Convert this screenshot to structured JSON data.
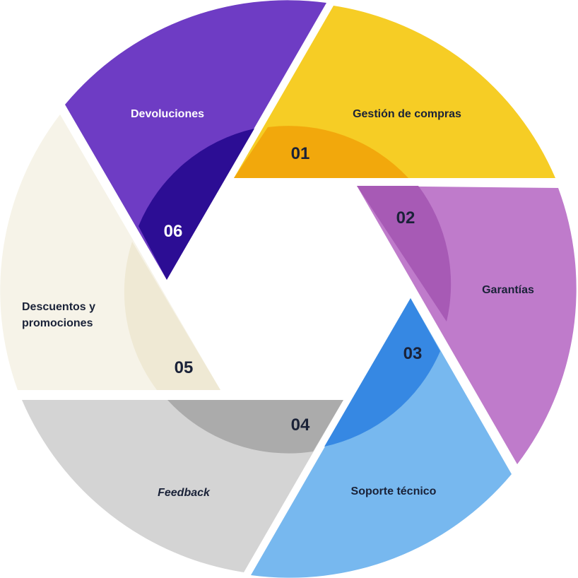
{
  "segments": [
    {
      "number": "01",
      "label": "Gestión de compras",
      "outer_color": "#F6CD25",
      "inner_color": "#F2A80C",
      "text_color": "#1A2238",
      "number_color": "#1A2238"
    },
    {
      "number": "02",
      "label": "Garantías",
      "outer_color": "#BF7BCB",
      "inner_color": "#A75AB5",
      "text_color": "#1A2238",
      "number_color": "#1A2238"
    },
    {
      "number": "03",
      "label": "Soporte técnico",
      "outer_color": "#77B8EF",
      "inner_color": "#3688E3",
      "text_color": "#1A2238",
      "number_color": "#1A2238"
    },
    {
      "number": "04",
      "label": "Feedback",
      "outer_color": "#D4D4D4",
      "inner_color": "#ABABAB",
      "text_color": "#1A2238",
      "number_color": "#1A2238",
      "italic": true
    },
    {
      "number": "05",
      "label": "Descuentos y promociones",
      "outer_color": "#F6F3E8",
      "inner_color": "#EFE9D4",
      "text_color": "#1A2238",
      "number_color": "#1A2238"
    },
    {
      "number": "06",
      "label": "Devoluciones",
      "outer_color": "#6E3CC4",
      "inner_color": "#2C0D94",
      "text_color": "#FFFFFF",
      "number_color": "#FFFFFF"
    }
  ]
}
